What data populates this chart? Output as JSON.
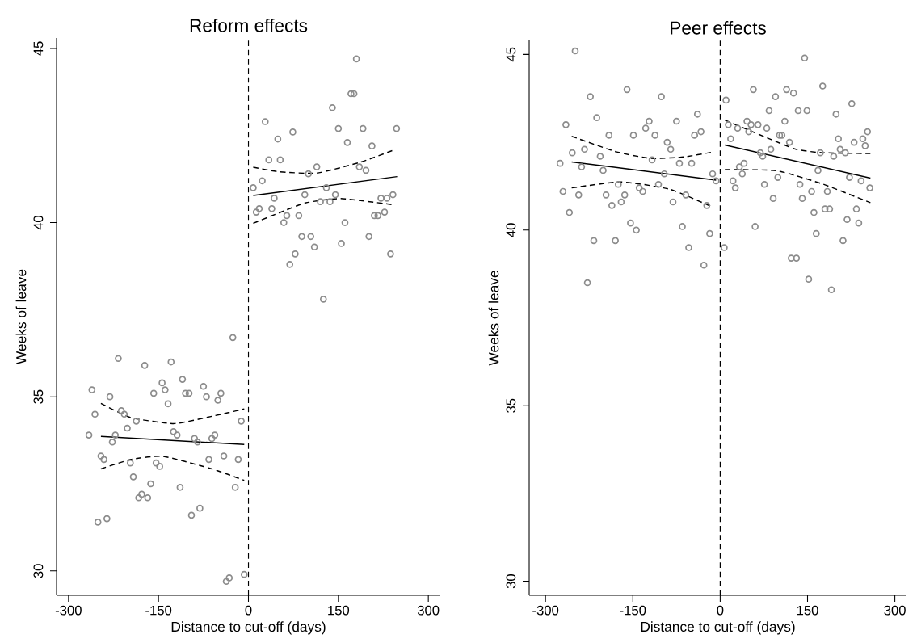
{
  "chart_data": [
    {
      "type": "scatter",
      "title": "Reform effects",
      "xlabel": "Distance to cut-off (days)",
      "ylabel": "Weeks of leave",
      "xlim": [
        -320,
        320
      ],
      "ylim": [
        29.3,
        45.3
      ],
      "xticks": [
        -300,
        -150,
        0,
        150,
        300
      ],
      "yticks": [
        30,
        35,
        40,
        45
      ],
      "ref_lines": [
        {
          "axis": "x",
          "value": 0,
          "line_style": "dashed"
        }
      ],
      "series": [
        {
          "marker": "circle",
          "color": "#8c8c8c",
          "x": [
            -26,
            -217,
            -173,
            -129,
            -144,
            -110,
            -75,
            -261,
            -231,
            -158,
            -139,
            -105,
            -99,
            -70,
            -46,
            -51,
            -134,
            -256,
            -212,
            -207,
            -187,
            -202,
            -12,
            -266,
            -222,
            -227,
            -125,
            -119,
            -90,
            -85,
            -61,
            -56,
            -246,
            -241,
            -197,
            -154,
            -148,
            -66,
            -41,
            -17,
            -192,
            -163,
            -114,
            -22,
            -178,
            -183,
            -168,
            -81,
            -95,
            -251,
            -236,
            -32,
            -37,
            -7,
            180,
            171,
            176,
            140,
            28,
            74,
            150,
            191,
            247,
            49,
            165,
            206,
            34,
            53,
            114,
            100,
            185,
            196,
            23,
            8,
            130,
            94,
            43,
            145,
            241,
            231,
            221,
            120,
            136,
            18,
            13,
            39,
            64,
            84,
            210,
            216,
            227,
            59,
            161,
            89,
            104,
            201,
            78,
            110,
            155,
            237,
            69,
            125
          ],
          "values": [
            36.7,
            36.1,
            35.9,
            36.0,
            35.4,
            35.5,
            35.3,
            35.2,
            35.0,
            35.1,
            35.2,
            35.1,
            35.1,
            35.0,
            35.1,
            34.9,
            34.8,
            34.5,
            34.6,
            34.5,
            34.3,
            34.1,
            34.3,
            33.9,
            33.9,
            33.7,
            34.0,
            33.9,
            33.8,
            33.7,
            33.8,
            33.9,
            33.3,
            33.2,
            33.1,
            33.1,
            33.0,
            33.2,
            33.3,
            33.2,
            32.7,
            32.5,
            32.4,
            32.4,
            32.2,
            32.1,
            32.1,
            31.8,
            31.6,
            31.4,
            31.5,
            29.8,
            29.7,
            29.9,
            44.7,
            43.7,
            43.7,
            43.3,
            42.9,
            42.6,
            42.7,
            42.7,
            42.7,
            42.4,
            42.3,
            42.2,
            41.8,
            41.8,
            41.6,
            41.4,
            41.6,
            41.5,
            41.2,
            41.0,
            41.0,
            40.8,
            40.7,
            40.8,
            40.8,
            40.7,
            40.7,
            40.6,
            40.6,
            40.4,
            40.3,
            40.4,
            40.2,
            40.2,
            40.2,
            40.2,
            40.3,
            40.0,
            40.0,
            39.6,
            39.6,
            39.6,
            39.1,
            39.3,
            39.4,
            39.1,
            38.8,
            37.8
          ]
        },
        {
          "type": "line",
          "color": "#000000",
          "line_style": "solid",
          "x": [
            -246,
            -7
          ],
          "values": [
            33.86,
            33.63
          ]
        },
        {
          "type": "line",
          "color": "#000000",
          "line_style": "dashed",
          "x": [
            -246,
            -196,
            -124,
            -61,
            -7
          ],
          "values": [
            34.81,
            34.4,
            34.23,
            34.44,
            34.65
          ]
        },
        {
          "type": "line",
          "color": "#000000",
          "line_style": "dashed",
          "x": [
            -246,
            -196,
            -142,
            -61,
            -7
          ],
          "values": [
            32.93,
            33.2,
            33.29,
            32.93,
            32.6
          ]
        },
        {
          "type": "line",
          "color": "#000000",
          "line_style": "solid",
          "x": [
            8,
            248
          ],
          "values": [
            40.78,
            41.32
          ]
        },
        {
          "type": "line",
          "color": "#000000",
          "line_style": "dashed",
          "x": [
            8,
            51,
            114,
            186,
            242
          ],
          "values": [
            41.59,
            41.46,
            41.42,
            41.73,
            42.08
          ]
        },
        {
          "type": "line",
          "color": "#000000",
          "line_style": "dashed",
          "x": [
            8,
            51,
            96,
            154,
            242
          ],
          "values": [
            39.98,
            40.28,
            40.57,
            40.69,
            40.51
          ]
        }
      ]
    },
    {
      "type": "scatter",
      "title": "Peer effects",
      "xlabel": "Distance to cut-off (days)",
      "ylabel": "Weeks of leave",
      "xlim": [
        -328,
        320
      ],
      "ylim": [
        29.6,
        45.4
      ],
      "xticks": [
        -300,
        -150,
        0,
        150,
        300
      ],
      "yticks": [
        30,
        35,
        40,
        45
      ],
      "ref_lines": [
        {
          "axis": "x",
          "value": 0,
          "line_style": "dashed"
        }
      ],
      "series": [
        {
          "marker": "circle",
          "color": "#8c8c8c",
          "x": [
            -249,
            -160,
            -223,
            -101,
            -212,
            -265,
            -128,
            -122,
            -75,
            -39,
            -33,
            -44,
            -191,
            -149,
            -112,
            -91,
            -85,
            -254,
            -233,
            -275,
            -238,
            -206,
            -201,
            -117,
            -70,
            -49,
            -96,
            -13,
            -7,
            -106,
            -270,
            -243,
            -175,
            -196,
            -164,
            -170,
            -139,
            -133,
            -186,
            -81,
            -59,
            -23,
            -259,
            -154,
            -144,
            -65,
            -18,
            -217,
            -180,
            -54,
            -28,
            -228,
            145,
            176,
            57,
            114,
            126,
            95,
            10,
            226,
            84,
            134,
            149,
            199,
            111,
            14,
            30,
            46,
            53,
            65,
            49,
            80,
            18,
            102,
            106,
            119,
            87,
            69,
            73,
            253,
            245,
            249,
            230,
            203,
            206,
            215,
            172,
            195,
            33,
            41,
            38,
            168,
            22,
            26,
            76,
            99,
            137,
            157,
            141,
            184,
            222,
            242,
            257,
            91,
            180,
            188,
            161,
            234,
            218,
            238,
            60,
            165,
            211,
            7,
            122,
            131,
            152,
            191
          ],
          "values": [
            45.1,
            44.0,
            43.8,
            43.8,
            43.2,
            43.0,
            42.9,
            43.1,
            43.1,
            43.3,
            42.8,
            42.7,
            42.7,
            42.7,
            42.7,
            42.5,
            42.3,
            42.2,
            42.3,
            41.9,
            41.8,
            42.1,
            41.7,
            42.0,
            41.9,
            41.9,
            41.6,
            41.6,
            41.4,
            41.3,
            41.1,
            41.0,
            41.3,
            41.0,
            41.0,
            40.8,
            41.2,
            41.1,
            40.7,
            40.8,
            41.0,
            40.7,
            40.5,
            40.2,
            40.0,
            40.1,
            39.9,
            39.7,
            39.7,
            39.5,
            39.0,
            38.5,
            44.9,
            44.1,
            44.0,
            44.0,
            43.9,
            43.8,
            43.7,
            43.6,
            43.4,
            43.4,
            43.4,
            43.3,
            43.1,
            43.0,
            42.9,
            43.1,
            43.0,
            43.0,
            42.8,
            42.9,
            42.6,
            42.7,
            42.7,
            42.5,
            42.3,
            42.2,
            42.1,
            42.8,
            42.6,
            42.4,
            42.5,
            42.6,
            42.3,
            42.2,
            42.2,
            42.1,
            41.8,
            41.9,
            41.6,
            41.7,
            41.4,
            41.2,
            41.3,
            41.5,
            41.3,
            41.1,
            40.9,
            41.1,
            41.5,
            41.4,
            41.2,
            40.9,
            40.6,
            40.6,
            40.5,
            40.6,
            40.3,
            40.2,
            40.1,
            39.9,
            39.7,
            39.5,
            39.2,
            39.2,
            38.6,
            38.3
          ]
        },
        {
          "type": "line",
          "color": "#000000",
          "line_style": "solid",
          "x": [
            -255,
            -7
          ],
          "values": [
            41.94,
            41.42
          ]
        },
        {
          "type": "line",
          "color": "#000000",
          "line_style": "dashed",
          "x": [
            -255,
            -179,
            -119,
            -63,
            -13
          ],
          "values": [
            42.67,
            42.23,
            42.04,
            42.08,
            42.22
          ]
        },
        {
          "type": "line",
          "color": "#000000",
          "line_style": "dashed",
          "x": [
            -255,
            -170,
            -86,
            -14
          ],
          "values": [
            41.2,
            41.37,
            41.16,
            40.66
          ]
        },
        {
          "type": "line",
          "color": "#000000",
          "line_style": "solid",
          "x": [
            8,
            258
          ],
          "values": [
            42.42,
            41.48
          ]
        },
        {
          "type": "line",
          "color": "#000000",
          "line_style": "dashed",
          "x": [
            8,
            83,
            130,
            176,
            258
          ],
          "values": [
            43.13,
            42.61,
            42.3,
            42.2,
            42.18
          ]
        },
        {
          "type": "line",
          "color": "#000000",
          "line_style": "dashed",
          "x": [
            8,
            97,
            176,
            258
          ],
          "values": [
            41.72,
            41.69,
            41.31,
            40.78
          ]
        }
      ]
    }
  ]
}
